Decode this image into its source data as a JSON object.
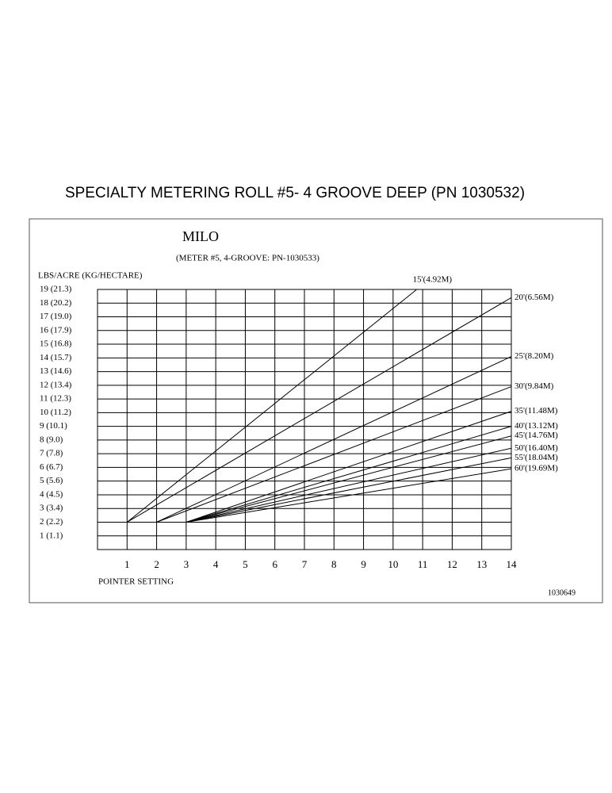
{
  "chart_data": {
    "type": "line",
    "title": "SPECIALTY METERING ROLL #5- 4 GROOVE DEEP (PN 1030532)",
    "subtitle": "MILO",
    "note": "(METER #5, 4-GROOVE: PN-1030533)",
    "y_label": "LBS/ACRE (KG/HECTARE)",
    "x_label": "POINTER SETTING",
    "figure_id": "1030649",
    "xlim": [
      0,
      14
    ],
    "ylim": [
      0,
      19
    ],
    "xticks": [
      1,
      2,
      3,
      4,
      5,
      6,
      7,
      8,
      9,
      10,
      11,
      12,
      13,
      14
    ],
    "yticks": [
      {
        "value": 1,
        "label": "1 (1.1)"
      },
      {
        "value": 2,
        "label": "2 (2.2)"
      },
      {
        "value": 3,
        "label": "3 (3.4)"
      },
      {
        "value": 4,
        "label": "4 (4.5)"
      },
      {
        "value": 5,
        "label": "5 (5.6)"
      },
      {
        "value": 6,
        "label": "6 (6.7)"
      },
      {
        "value": 7,
        "label": "7 (7.8)"
      },
      {
        "value": 8,
        "label": "8 (9.0)"
      },
      {
        "value": 9,
        "label": "9 (10.1)"
      },
      {
        "value": 10,
        "label": "10 (11.2)"
      },
      {
        "value": 11,
        "label": "11 (12.3)"
      },
      {
        "value": 12,
        "label": "12 (13.4)"
      },
      {
        "value": 13,
        "label": "13 (14.6)"
      },
      {
        "value": 14,
        "label": "14 (15.7)"
      },
      {
        "value": 15,
        "label": "15 (16.8)"
      },
      {
        "value": 16,
        "label": "16 (17.9)"
      },
      {
        "value": 17,
        "label": "17 (19.0)"
      },
      {
        "value": 18,
        "label": "18 (20.2)"
      },
      {
        "value": 19,
        "label": "19 (21.3)"
      }
    ],
    "grid": true,
    "color": "#000000",
    "series": [
      {
        "name": "15'(4.92M)",
        "x": [
          1,
          10.8
        ],
        "values": [
          2,
          19
        ]
      },
      {
        "name": "20'(6.56M)",
        "x": [
          1,
          14
        ],
        "values": [
          2,
          18.4
        ]
      },
      {
        "name": "25'(8.20M)",
        "x": [
          2,
          14
        ],
        "values": [
          2,
          14.1
        ]
      },
      {
        "name": "30'(9.84M)",
        "x": [
          2,
          14
        ],
        "values": [
          2,
          11.9
        ]
      },
      {
        "name": "35'(11.48M)",
        "x": [
          3,
          14
        ],
        "values": [
          2,
          10.1
        ]
      },
      {
        "name": "40'(13.12M)",
        "x": [
          3,
          14
        ],
        "values": [
          2,
          9.0
        ]
      },
      {
        "name": "45'(14.76M)",
        "x": [
          3,
          14
        ],
        "values": [
          2,
          8.3
        ]
      },
      {
        "name": "50'(16.40M)",
        "x": [
          3,
          14
        ],
        "values": [
          2,
          7.4
        ]
      },
      {
        "name": "55'(18.04M)",
        "x": [
          3,
          14
        ],
        "values": [
          2,
          6.7
        ]
      },
      {
        "name": "60'(19.69M)",
        "x": [
          3,
          14
        ],
        "values": [
          2,
          5.9
        ]
      }
    ]
  }
}
